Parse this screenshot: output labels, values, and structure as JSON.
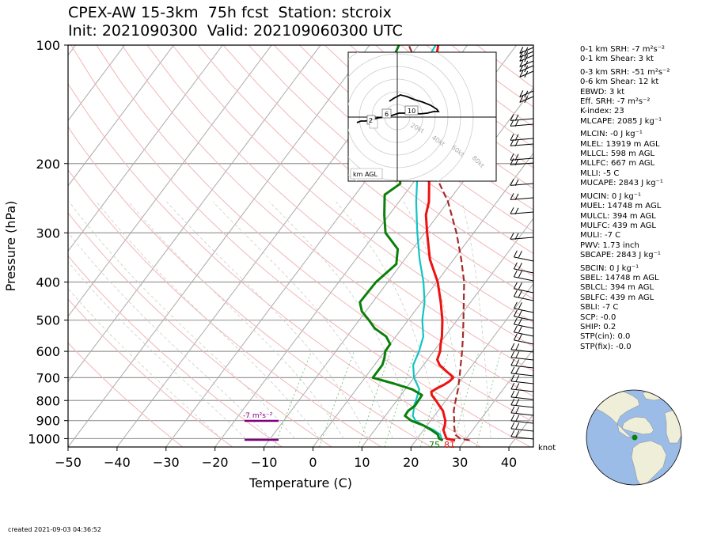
{
  "title_line1": "CPEX-AW 15-3km  75h fcst  Station: stcroix",
  "title_line2": "Init: 2021090300  Valid: 202109060300 UTC",
  "created": "created 2021-09-03 04:36:52",
  "chart_data": {
    "type": "line",
    "kind": "skew-T log-P sounding",
    "xlabel": "Temperature (C)",
    "ylabel": "Pressure (hPa)",
    "xlim": [
      -50,
      45
    ],
    "ylim": [
      1050,
      100
    ],
    "y_scale": "log",
    "xticks": [
      "−50",
      "−40",
      "−30",
      "−20",
      "−10",
      "0",
      "10",
      "20",
      "30",
      "40"
    ],
    "yticks": [
      "100",
      "200",
      "300",
      "400",
      "500",
      "600",
      "700",
      "800",
      "900",
      "1000"
    ],
    "grid": true,
    "series": [
      {
        "color": "#ee1111",
        "style": "solid",
        "points": [
          [
            1010,
            28
          ],
          [
            1000,
            26
          ],
          [
            975,
            25
          ],
          [
            950,
            24
          ],
          [
            925,
            23.6
          ],
          [
            900,
            23
          ],
          [
            875,
            22
          ],
          [
            850,
            21
          ],
          [
            825,
            19.5
          ],
          [
            800,
            18
          ],
          [
            775,
            16.3
          ],
          [
            760,
            15.7
          ],
          [
            745,
            16.3
          ],
          [
            730,
            17.2
          ],
          [
            715,
            17.8
          ],
          [
            700,
            18
          ],
          [
            690,
            17.2
          ],
          [
            675,
            15.7
          ],
          [
            650,
            13.3
          ],
          [
            630,
            12
          ],
          [
            600,
            11.3
          ],
          [
            575,
            10.3
          ],
          [
            550,
            9.4
          ],
          [
            500,
            7
          ],
          [
            450,
            3.9
          ],
          [
            400,
            0.2
          ],
          [
            350,
            -4.9
          ],
          [
            300,
            -9.5
          ],
          [
            270,
            -12.5
          ],
          [
            250,
            -13.9
          ],
          [
            220,
            -17.2
          ],
          [
            200,
            -19.5
          ],
          [
            180,
            -22
          ],
          [
            160,
            -25
          ],
          [
            140,
            -28
          ],
          [
            120,
            -32
          ],
          [
            110,
            -34
          ],
          [
            100,
            -36
          ]
        ]
      },
      {
        "color": "#11c4c4",
        "style": "solid",
        "points": [
          [
            1010,
            25.3
          ],
          [
            1000,
            25
          ],
          [
            975,
            24
          ],
          [
            950,
            22
          ],
          [
            925,
            19.2
          ],
          [
            900,
            16.9
          ],
          [
            875,
            15.6
          ],
          [
            850,
            15
          ],
          [
            825,
            14.3
          ],
          [
            800,
            13.9
          ],
          [
            775,
            13.4
          ],
          [
            750,
            12.9
          ],
          [
            725,
            11.5
          ],
          [
            700,
            10
          ],
          [
            650,
            7.9
          ],
          [
            600,
            7
          ],
          [
            550,
            5.6
          ],
          [
            500,
            2.9
          ],
          [
            450,
            0.6
          ],
          [
            400,
            -2.7
          ],
          [
            350,
            -7
          ],
          [
            300,
            -11.5
          ],
          [
            250,
            -16.5
          ],
          [
            200,
            -22
          ],
          [
            150,
            -30
          ],
          [
            120,
            -35.5
          ],
          [
            110,
            -36
          ],
          [
            100,
            -36.5
          ]
        ]
      },
      {
        "color": "#0a800a",
        "style": "solid",
        "points": [
          [
            1010,
            25.5
          ],
          [
            1000,
            24.5
          ],
          [
            975,
            23.5
          ],
          [
            950,
            21.5
          ],
          [
            925,
            19.2
          ],
          [
            900,
            16
          ],
          [
            875,
            14
          ],
          [
            850,
            13.9
          ],
          [
            825,
            14.5
          ],
          [
            800,
            14.4
          ],
          [
            775,
            14.3
          ],
          [
            750,
            11.5
          ],
          [
            725,
            6.9
          ],
          [
            700,
            1.6
          ],
          [
            650,
            1.6
          ],
          [
            625,
            1
          ],
          [
            600,
            0.1
          ],
          [
            575,
            0
          ],
          [
            550,
            -2
          ],
          [
            525,
            -5.5
          ],
          [
            500,
            -8
          ],
          [
            475,
            -10.8
          ],
          [
            450,
            -12.6
          ],
          [
            400,
            -12.4
          ],
          [
            360,
            -11
          ],
          [
            330,
            -13
          ],
          [
            300,
            -18
          ],
          [
            270,
            -21
          ],
          [
            240,
            -24
          ],
          [
            225,
            -22.5
          ],
          [
            200,
            -26
          ],
          [
            180,
            -30
          ],
          [
            160,
            -34
          ],
          [
            140,
            -42
          ],
          [
            120,
            -42
          ],
          [
            110,
            -43
          ],
          [
            100,
            -44
          ]
        ]
      },
      {
        "color": "#a52a2a",
        "style": "dashed",
        "points": [
          [
            1010,
            31
          ],
          [
            1000,
            28.8
          ],
          [
            975,
            27
          ],
          [
            950,
            26.3
          ],
          [
            925,
            25.5
          ],
          [
            900,
            24.8
          ],
          [
            850,
            23.2
          ],
          [
            800,
            22
          ],
          [
            750,
            20.8
          ],
          [
            700,
            19.3
          ],
          [
            650,
            17.6
          ],
          [
            600,
            15.8
          ],
          [
            550,
            13.7
          ],
          [
            500,
            11.3
          ],
          [
            450,
            8.6
          ],
          [
            400,
            5.6
          ],
          [
            350,
            1.5
          ],
          [
            300,
            -3.5
          ],
          [
            250,
            -10
          ],
          [
            200,
            -19.5
          ],
          [
            170,
            -24.5
          ],
          [
            150,
            -28.5
          ],
          [
            130,
            -32
          ],
          [
            115,
            -37
          ],
          [
            105,
            -40
          ],
          [
            100,
            -42
          ]
        ]
      }
    ],
    "surface_labels": [
      {
        "text": "75",
        "color": "#0a800a"
      },
      {
        "text": "81",
        "color": "#ee1111"
      }
    ],
    "srh_bar": {
      "label": "-7 m²s⁻²",
      "color": "#800080"
    },
    "barb_unit": "knot",
    "hodograph": {
      "ring_labels": [
        "20kt",
        "40kt",
        "60kt",
        "80kt"
      ],
      "height_labels": [
        "2",
        "6",
        "10"
      ],
      "box_label": "km AGL"
    }
  },
  "indices": [
    {
      "label": "0-1 km SRH: -7 m²s⁻²"
    },
    {
      "label": "0-1 km Shear: 3 kt"
    },
    {
      "label": ""
    },
    {
      "label": "0-3 km SRH: -51 m²s⁻²"
    },
    {
      "label": "0-6 km Shear: 12 kt"
    },
    {
      "label": "EBWD: 3 kt"
    },
    {
      "label": "Eff. SRH: -7 m²s⁻²"
    },
    {
      "label": "K-index: 23"
    },
    {
      "label": "MLCAPE: 2085 J kg⁻¹"
    },
    {
      "label": ""
    },
    {
      "label": "MLCIN: -0 J kg⁻¹"
    },
    {
      "label": "MLEL: 13919 m AGL"
    },
    {
      "label": "MLLCL: 598 m AGL"
    },
    {
      "label": "MLLFC: 667 m AGL"
    },
    {
      "label": "MLLI: -5 C"
    },
    {
      "label": "MUCAPE: 2843 J kg⁻¹"
    },
    {
      "label": ""
    },
    {
      "label": "MUCIN: 0 J kg⁻¹"
    },
    {
      "label": "MUEL: 14748 m AGL"
    },
    {
      "label": "MULCL: 394 m AGL"
    },
    {
      "label": "MULFC: 439 m AGL"
    },
    {
      "label": "MULI: -7 C"
    },
    {
      "label": "PWV: 1.73 inch"
    },
    {
      "label": "SBCAPE: 2843 J kg⁻¹"
    },
    {
      "label": ""
    },
    {
      "label": "SBCIN: 0 J kg⁻¹"
    },
    {
      "label": "SBEL: 14748 m AGL"
    },
    {
      "label": "SBLCL: 394 m AGL"
    },
    {
      "label": "SBLFC: 439 m AGL"
    },
    {
      "label": "SBLI: -7 C"
    },
    {
      "label": "SCP: -0.0"
    },
    {
      "label": "SHIP: 0.2"
    },
    {
      "label": "STP(cin): 0.0"
    },
    {
      "label": "STP(fix): -0.0"
    }
  ],
  "colors": {
    "ocean": "#9bbce6",
    "land": "#efeed8",
    "station": "#0a800a"
  }
}
